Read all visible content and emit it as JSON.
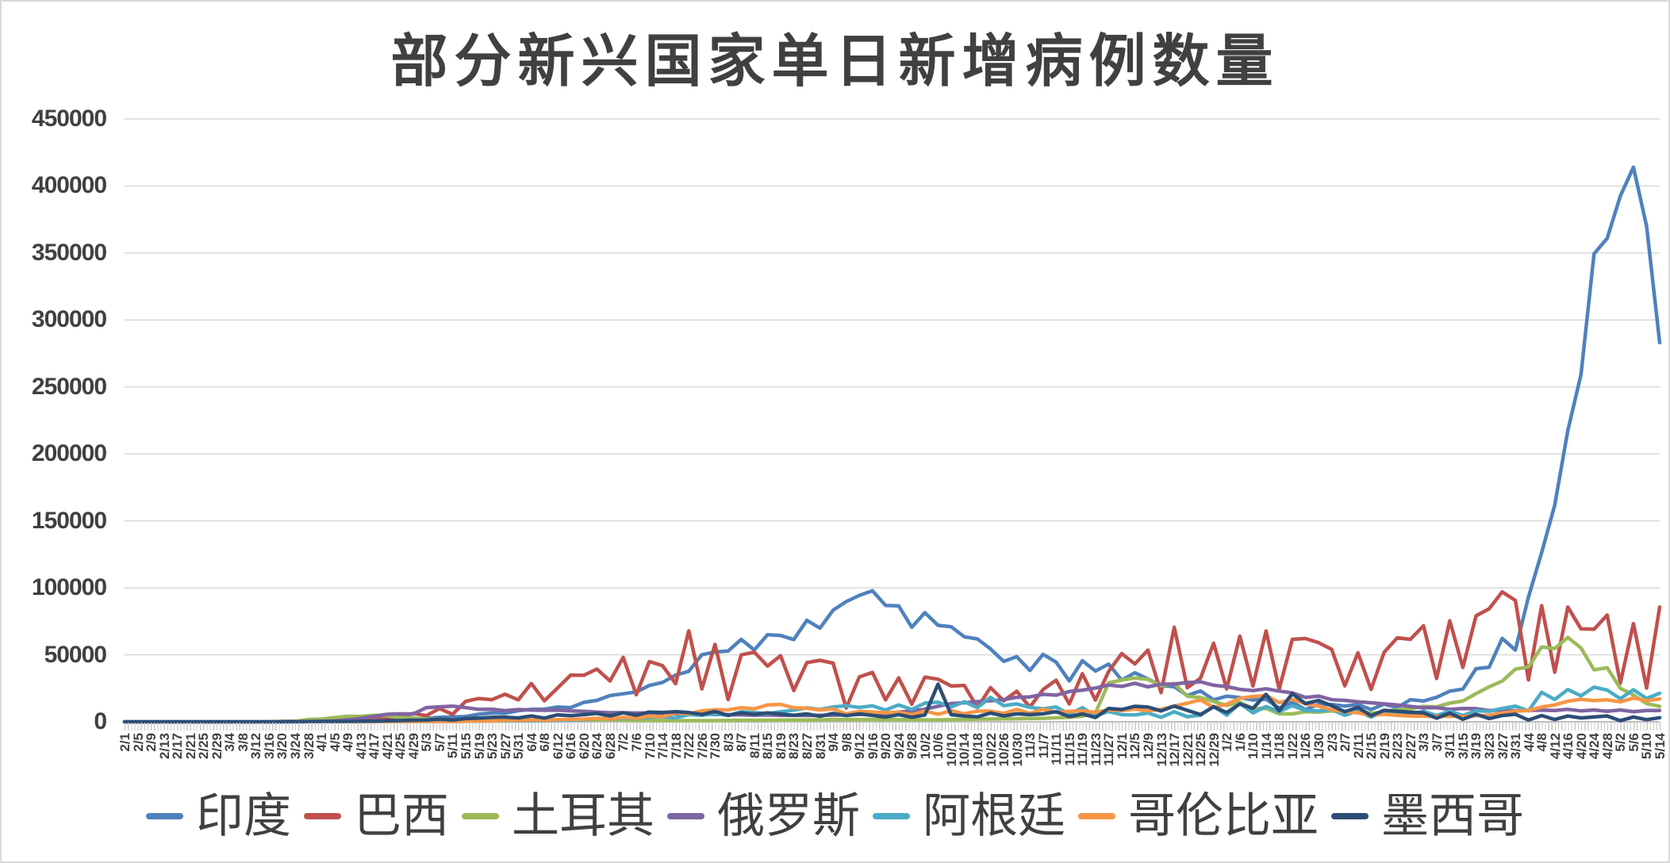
{
  "window": {
    "background": "#ffffff",
    "border_color": "#d9d9d9"
  },
  "styles": {
    "title_color": "#404040",
    "axis_label_color": "#404040",
    "grid_color": "#d9d9d9",
    "axis_line_color": "#bfbfbf",
    "tick_comb_color": "#c9c9c9"
  },
  "chart_data": {
    "type": "line",
    "title": "部分新兴国家单日新增病例数量",
    "grid": "horizontal",
    "legend_position": "bottom",
    "ylim": [
      0,
      450000
    ],
    "y_ticks": [
      0,
      50000,
      100000,
      150000,
      200000,
      250000,
      300000,
      350000,
      400000,
      450000
    ],
    "y_tick_labels": [
      "0",
      "50000",
      "100000",
      "150000",
      "200000",
      "250000",
      "300000",
      "350000",
      "400000",
      "450000"
    ],
    "x_tick_labels": [
      "2/1",
      "2/5",
      "2/9",
      "2/13",
      "2/17",
      "2/21",
      "2/25",
      "2/29",
      "3/4",
      "3/8",
      "3/12",
      "3/16",
      "3/20",
      "3/24",
      "3/28",
      "4/1",
      "4/5",
      "4/9",
      "4/13",
      "4/17",
      "4/21",
      "4/25",
      "4/29",
      "5/3",
      "5/7",
      "5/11",
      "5/15",
      "5/19",
      "5/23",
      "5/27",
      "5/31",
      "6/4",
      "6/8",
      "6/12",
      "6/16",
      "6/20",
      "6/24",
      "6/28",
      "7/2",
      "7/6",
      "7/10",
      "7/14",
      "7/18",
      "7/22",
      "7/26",
      "7/30",
      "8/3",
      "8/7",
      "8/11",
      "8/15",
      "8/19",
      "8/23",
      "8/27",
      "8/31",
      "9/4",
      "9/8",
      "9/12",
      "9/16",
      "9/20",
      "9/24",
      "9/28",
      "10/2",
      "10/6",
      "10/10",
      "10/14",
      "10/18",
      "10/22",
      "10/26",
      "10/30",
      "11/3",
      "11/7",
      "11/11",
      "11/15",
      "11/19",
      "11/23",
      "11/27",
      "12/1",
      "12/5",
      "12/9",
      "12/13",
      "12/17",
      "12/21",
      "12/25",
      "12/29",
      "1/2",
      "1/6",
      "1/10",
      "1/14",
      "1/18",
      "1/22",
      "1/26",
      "1/30",
      "2/3",
      "2/7",
      "2/11",
      "2/15",
      "2/19",
      "2/23",
      "2/27",
      "3/3",
      "3/7",
      "3/11",
      "3/15",
      "3/19",
      "3/23",
      "3/27",
      "3/31",
      "4/4",
      "4/8",
      "4/12",
      "4/16",
      "4/20",
      "4/24",
      "4/28",
      "5/2",
      "5/6",
      "5/10",
      "5/14"
    ],
    "series": [
      {
        "name": "印度",
        "color": "#4F81BD",
        "values": [
          0,
          0,
          0,
          0,
          0,
          0,
          0,
          0,
          3,
          5,
          8,
          15,
          50,
          100,
          150,
          400,
          700,
          850,
          1250,
          1400,
          1500,
          1800,
          1900,
          2600,
          3300,
          3600,
          3900,
          5700,
          6600,
          6400,
          8300,
          9300,
          9500,
          11000,
          10600,
          14500,
          16000,
          19600,
          20900,
          22300,
          27100,
          29400,
          34900,
          37700,
          50100,
          52100,
          52800,
          61500,
          53600,
          65000,
          64500,
          61400,
          75800,
          69900,
          83300,
          89700,
          94400,
          97900,
          86900,
          86500,
          70600,
          81500,
          72000,
          71000,
          63500,
          61900,
          54400,
          45100,
          48600,
          38300,
          50400,
          44600,
          30500,
          45600,
          37900,
          43100,
          31100,
          36600,
          32000,
          27100,
          26200,
          19600,
          23100,
          16400,
          19100,
          18100,
          16300,
          16900,
          10100,
          14500,
          9100,
          13100,
          12900,
          11800,
          12900,
          9100,
          13200,
          10600,
          16500,
          15500,
          18300,
          22900,
          24400,
          39700,
          40700,
          62300,
          53500,
          93200,
          126300,
          161700,
          217400,
          259200,
          349400,
          360900,
          392500,
          414000,
          370000,
          283000
        ]
      },
      {
        "name": "巴西",
        "color": "#C0504D",
        "values": [
          0,
          0,
          0,
          0,
          0,
          0,
          0,
          0,
          0,
          20,
          60,
          200,
          300,
          400,
          500,
          1100,
          850,
          2200,
          1300,
          3700,
          2500,
          3500,
          6300,
          4600,
          9900,
          5600,
          15300,
          17400,
          16500,
          20600,
          16400,
          28600,
          15700,
          25200,
          34900,
          34700,
          39400,
          30500,
          48100,
          20200,
          45000,
          41900,
          28500,
          67900,
          24600,
          57800,
          16600,
          50000,
          52000,
          41600,
          49300,
          23400,
          44200,
          45900,
          43800,
          10300,
          33500,
          36800,
          16400,
          32800,
          13200,
          33400,
          31800,
          26700,
          27200,
          10600,
          25600,
          15700,
          22800,
          11000,
          24100,
          31100,
          13300,
          35900,
          16200,
          37600,
          50900,
          43200,
          53500,
          21800,
          70600,
          25400,
          32600,
          58700,
          24600,
          64000,
          26700,
          67800,
          24400,
          61600,
          62200,
          59100,
          54100,
          26800,
          51500,
          24200,
          51900,
          62700,
          61600,
          71700,
          32300,
          75400,
          40600,
          79100,
          84400,
          97000,
          90600,
          31300,
          86700,
          37000,
          85700,
          69400,
          69100,
          79700,
          28900,
          73300,
          25200,
          85700
        ]
      },
      {
        "name": "土耳其",
        "color": "#9BBB59",
        "values": [
          0,
          0,
          0,
          0,
          0,
          0,
          0,
          0,
          0,
          0,
          0,
          12,
          300,
          340,
          1700,
          2100,
          3100,
          4100,
          4100,
          4800,
          4600,
          3100,
          2900,
          2000,
          1900,
          1100,
          1600,
          1000,
          1200,
          1000,
          800,
          900,
          1000,
          1500,
          1600,
          1300,
          1300,
          1400,
          1200,
          1100,
          1000,
          900,
          900,
          900,
          900,
          900,
          1000,
          1100,
          1200,
          1200,
          1300,
          1300,
          1300,
          1500,
          1700,
          1700,
          1700,
          1700,
          1600,
          1700,
          1600,
          1400,
          1500,
          1600,
          1700,
          2000,
          2100,
          2200,
          2300,
          2400,
          2600,
          3000,
          3300,
          4200,
          6700,
          29100,
          31200,
          32700,
          31700,
          26900,
          28600,
          19100,
          18100,
          15200,
          12200,
          14500,
          9800,
          10000,
          6000,
          5900,
          7500,
          7200,
          8100,
          7500,
          8000,
          6300,
          7300,
          9100,
          9600,
          11500,
          11200,
          14000,
          15500,
          21000,
          26100,
          30400,
          39300,
          41000,
          55900,
          54700,
          63000,
          55100,
          38800,
          40400,
          25000,
          20100,
          13600,
          11500
        ]
      },
      {
        "name": "俄罗斯",
        "color": "#8064A2",
        "values": [
          0,
          0,
          0,
          0,
          0,
          0,
          0,
          0,
          3,
          3,
          6,
          30,
          50,
          70,
          230,
          440,
          660,
          1460,
          2560,
          4070,
          5640,
          5970,
          5840,
          10600,
          11200,
          11700,
          10600,
          9300,
          9400,
          8300,
          9200,
          8800,
          8600,
          8700,
          8200,
          7900,
          7200,
          6800,
          6800,
          6600,
          6600,
          6200,
          6100,
          5800,
          5700,
          5500,
          5400,
          5200,
          5000,
          5100,
          4800,
          4900,
          4700,
          4900,
          5000,
          5200,
          5500,
          5700,
          6200,
          7200,
          8000,
          9400,
          11600,
          13600,
          14200,
          15100,
          15700,
          16600,
          18300,
          18600,
          20500,
          19900,
          22600,
          23600,
          25200,
          27500,
          26400,
          28800,
          26100,
          28100,
          28200,
          29300,
          29900,
          27300,
          26300,
          24200,
          23300,
          24700,
          22900,
          21600,
          18200,
          19200,
          16500,
          16000,
          15000,
          14200,
          13400,
          12600,
          11500,
          10500,
          10600,
          9300,
          9900,
          9800,
          8400,
          8700,
          8200,
          8600,
          8700,
          8400,
          9300,
          8200,
          8800,
          7900,
          8800,
          7600,
          8400,
          8400
        ]
      },
      {
        "name": "阿根廷",
        "color": "#4BACC6",
        "values": [
          0,
          0,
          0,
          0,
          0,
          0,
          0,
          0,
          0,
          0,
          2,
          10,
          30,
          60,
          100,
          90,
          100,
          90,
          70,
          100,
          110,
          170,
          110,
          100,
          170,
          260,
          340,
          440,
          700,
          600,
          800,
          930,
          830,
          1200,
          1200,
          1600,
          2600,
          2200,
          2700,
          2600,
          3400,
          3600,
          3000,
          5300,
          4900,
          5900,
          4800,
          7500,
          7000,
          6100,
          7500,
          8700,
          10500,
          9200,
          11100,
          12000,
          10800,
          11900,
          8800,
          12600,
          9200,
          14000,
          14700,
          11200,
          14900,
          10600,
          18300,
          12100,
          13400,
          10800,
          9700,
          11100,
          5600,
          10600,
          4400,
          7700,
          5300,
          5100,
          6600,
          3300,
          7500,
          3800,
          5000,
          11600,
          4900,
          13800,
          6700,
          11400,
          7600,
          12100,
          8500,
          8200,
          9100,
          4900,
          8200,
          3500,
          7700,
          6000,
          5800,
          7900,
          4700,
          8000,
          4700,
          8300,
          7800,
          10000,
          11700,
          8200,
          22000,
          16700,
          24100,
          19400,
          25900,
          23700,
          17300,
          24000,
          17400,
          21300
        ]
      },
      {
        "name": "哥伦比亚",
        "color": "#F79646",
        "values": [
          0,
          0,
          0,
          0,
          0,
          0,
          0,
          0,
          0,
          0,
          3,
          10,
          30,
          60,
          90,
          110,
          80,
          100,
          70,
          130,
          120,
          220,
          140,
          270,
          240,
          180,
          390,
          640,
          560,
          1100,
          1000,
          1500,
          1100,
          1600,
          1800,
          2000,
          2600,
          2200,
          3300,
          2700,
          4200,
          3800,
          6800,
          6100,
          8100,
          9000,
          8900,
          10600,
          9700,
          12600,
          13000,
          10500,
          10100,
          8800,
          9600,
          5900,
          7800,
          7300,
          6800,
          7100,
          5300,
          8000,
          5600,
          8300,
          6000,
          8000,
          8000,
          6200,
          9300,
          6200,
          9500,
          7000,
          7900,
          8200,
          7100,
          8900,
          8400,
          9500,
          8200,
          9300,
          11700,
          13900,
          16400,
          10800,
          13100,
          17600,
          18900,
          19700,
          14300,
          16900,
          13400,
          11700,
          9000,
          7600,
          6700,
          4900,
          5600,
          4800,
          4300,
          4200,
          3900,
          4200,
          3900,
          4600,
          5000,
          6500,
          7900,
          8500,
          11000,
          12600,
          15400,
          16800,
          15800,
          16400,
          14900,
          17700,
          15800,
          17100
        ]
      },
      {
        "name": "墨西哥",
        "color": "#2C4D75",
        "values": [
          0,
          0,
          0,
          0,
          0,
          0,
          0,
          0,
          0,
          0,
          4,
          10,
          20,
          40,
          100,
          120,
          250,
          260,
          350,
          450,
          730,
          970,
          1200,
          1350,
          1900,
          1300,
          2400,
          2700,
          3300,
          3500,
          2900,
          4400,
          2800,
          5200,
          4600,
          5300,
          6300,
          4400,
          6700,
          4900,
          7300,
          7000,
          7600,
          6900,
          5500,
          7700,
          4800,
          6700,
          5600,
          6700,
          5800,
          4900,
          5900,
          4100,
          6200,
          4600,
          5900,
          4800,
          3500,
          5400,
          3400,
          5100,
          28100,
          5300,
          4300,
          3700,
          6600,
          4400,
          6000,
          5300,
          6000,
          7600,
          3900,
          5900,
          3200,
          10000,
          9200,
          11600,
          11000,
          8100,
          11700,
          8600,
          5400,
          11200,
          6900,
          13300,
          10000,
          20500,
          8300,
          21000,
          13600,
          15900,
          12100,
          7600,
          10700,
          4600,
          8600,
          7800,
          7100,
          6700,
          2700,
          6500,
          1900,
          5600,
          2400,
          4700,
          5600,
          1300,
          4700,
          1700,
          4300,
          2900,
          3600,
          4400,
          800,
          3600,
          1600,
          3100
        ]
      }
    ]
  }
}
